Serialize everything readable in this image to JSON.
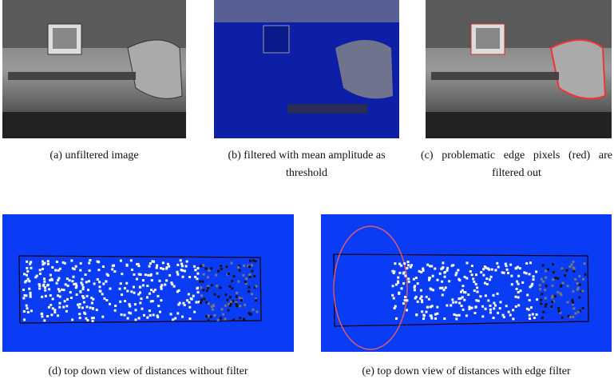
{
  "figure": {
    "panels": [
      {
        "caption": "(a) unfiltered image"
      },
      {
        "caption": "(b) filtered with mean amplitude as threshold"
      },
      {
        "caption": "(c) problematic edge pixels (red) are filtered out"
      },
      {
        "caption": "(d) top down view of distances without filter"
      },
      {
        "caption": "(e) top down view of distances with edge filter"
      }
    ]
  }
}
